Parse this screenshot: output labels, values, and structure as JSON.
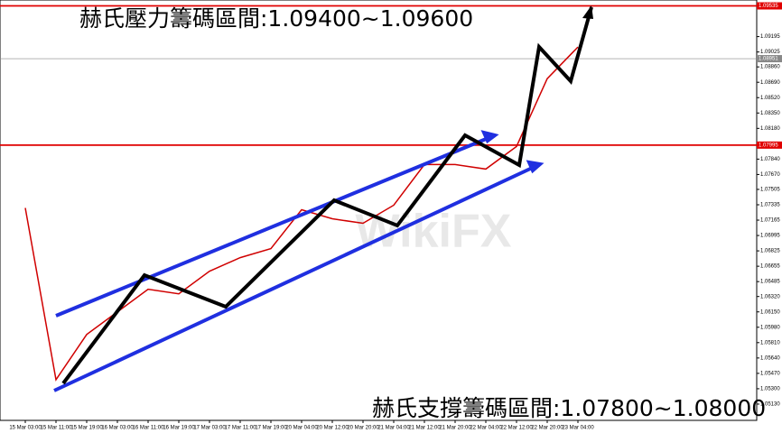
{
  "chart_data": {
    "type": "line",
    "annotations": [
      "赫氏壓力籌碼區間:1.09400~1.09600",
      "赫氏支撐籌碼區間:1.07800~1.08000"
    ],
    "watermark": "WikiFX",
    "categories": [
      "15 Mar 03:00",
      "15 Mar 11:00",
      "15 Mar 19:00",
      "16 Mar 03:00",
      "16 Mar 11:00",
      "16 Mar 19:00",
      "17 Mar 03:00",
      "17 Mar 11:00",
      "17 Mar 19:00",
      "20 Mar 04:00",
      "20 Mar 12:00",
      "20 Mar 20:00",
      "21 Mar 04:00",
      "21 Mar 12:00",
      "21 Mar 20:00",
      "22 Mar 04:00",
      "22 Mar 12:00",
      "22 Mar 20:00",
      "23 Mar 04:00"
    ],
    "series": [
      {
        "color": "#d00000",
        "values": [
          1.073,
          1.054,
          1.059,
          1.0615,
          1.064,
          1.0635,
          1.066,
          1.0675,
          1.0685,
          1.0728,
          1.0718,
          1.0713,
          1.0733,
          1.0778,
          1.0778,
          1.0773,
          1.0798,
          1.0873,
          1.0908
        ]
      }
    ],
    "hlines": [
      {
        "value": 1.09535,
        "label": "1.09535",
        "color": "#e00000"
      },
      {
        "value": 1.08951,
        "label": "1.08951",
        "color": "#888888"
      },
      {
        "value": 1.07995,
        "label": "1.07995",
        "color": "#e00000"
      }
    ],
    "ylim": [
      1.0495,
      1.096
    ],
    "yticks": [
      1.09195,
      {
        "value": 1.09025,
        "label": "1.09025"
      },
      {
        "value": 1.0886,
        "label": "1.08860"
      },
      {
        "value": 1.0869,
        "label": "1.08690"
      },
      {
        "value": 1.0852,
        "label": "1.08520"
      },
      {
        "value": 1.0835,
        "label": "1.08350"
      },
      {
        "value": 1.0818,
        "label": "1.08180"
      },
      {
        "value": 1.0784,
        "label": "1.07840"
      },
      {
        "value": 1.0767,
        "label": "1.07670"
      },
      1.07505,
      1.07335,
      1.07165,
      1.06995,
      1.06825,
      1.06655,
      1.06485,
      {
        "value": 1.0632,
        "label": "1.06320"
      },
      {
        "value": 1.0615,
        "label": "1.06150"
      },
      {
        "value": 1.0598,
        "label": "1.05980"
      },
      {
        "value": 1.0581,
        "label": "1.05810"
      },
      {
        "value": 1.0564,
        "label": "1.05640"
      },
      {
        "value": 1.0547,
        "label": "1.05470"
      },
      {
        "value": 1.053,
        "label": "1.05300"
      },
      {
        "value": 1.0513,
        "label": "1.05130"
      }
    ]
  }
}
